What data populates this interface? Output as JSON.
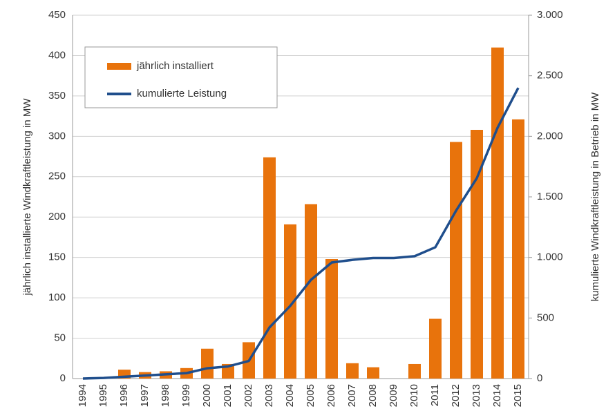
{
  "chart_data": {
    "type": "bar_line",
    "categories": [
      "1994",
      "1995",
      "1996",
      "1997",
      "1998",
      "1999",
      "2000",
      "2001",
      "2002",
      "2003",
      "2004",
      "2005",
      "2006",
      "2007",
      "2008",
      "2009",
      "2010",
      "2011",
      "2012",
      "2013",
      "2014",
      "2015"
    ],
    "series": [
      {
        "name": "jährlich installiert",
        "type": "bar",
        "color": "#e8730c",
        "values": [
          0,
          0,
          11,
          8,
          9,
          13,
          37,
          18,
          45,
          274,
          191,
          216,
          148,
          19,
          14,
          0,
          18,
          74,
          293,
          308,
          410,
          321
        ]
      },
      {
        "name": "kumulierte Leistung",
        "type": "line",
        "axis": "y2",
        "color": "#1f4e8c",
        "values": [
          0,
          5,
          15,
          25,
          35,
          45,
          85,
          100,
          145,
          422,
          600,
          815,
          958,
          980,
          995,
          995,
          1010,
          1084,
          1386,
          1654,
          2070,
          2400
        ]
      }
    ],
    "ylabel": "jährlich installierte Windkraftleistung in MW",
    "y2label": "kumulierte Windkraftleistung in Betrieb in MW",
    "ylim": [
      0,
      450
    ],
    "yticks": [
      0,
      50,
      100,
      150,
      200,
      250,
      300,
      350,
      400,
      450
    ],
    "y2lim": [
      0,
      3000
    ],
    "y2ticks": [
      0,
      500,
      {
        "value": 1000,
        "label": "1.000"
      },
      {
        "value": 1500,
        "label": "1.500"
      },
      {
        "value": 2000,
        "label": "2.000"
      },
      {
        "value": 2500,
        "label": "2.500"
      },
      {
        "value": 3000,
        "label": "3.000"
      }
    ],
    "grid": true,
    "legend": "upper left"
  }
}
